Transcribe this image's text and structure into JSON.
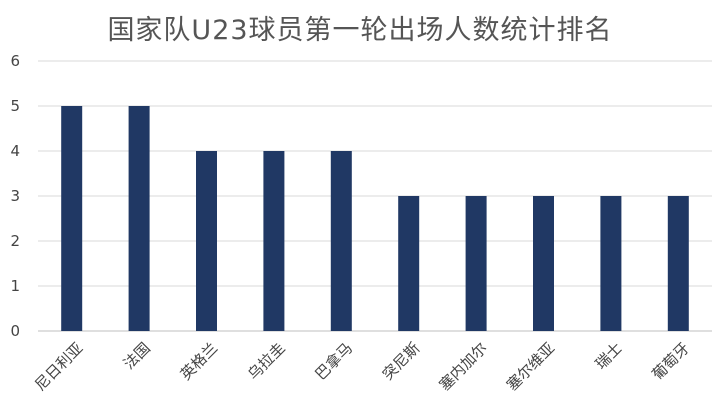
{
  "chart_data": {
    "type": "bar",
    "title": "国家队U23球员第一轮出场人数统计排名",
    "categories": [
      "尼日利亚",
      "法国",
      "英格兰",
      "乌拉圭",
      "巴拿马",
      "突尼斯",
      "塞内加尔",
      "塞尔维亚",
      "瑞士",
      "葡萄牙"
    ],
    "values": [
      5,
      5,
      4,
      4,
      4,
      3,
      3,
      3,
      3,
      3
    ],
    "xlabel": "",
    "ylabel": "",
    "ylim": [
      0,
      6
    ],
    "yticks": [
      0,
      1,
      2,
      3,
      4,
      5,
      6
    ],
    "grid": true,
    "bar_color": "#203864",
    "legend": "none"
  }
}
